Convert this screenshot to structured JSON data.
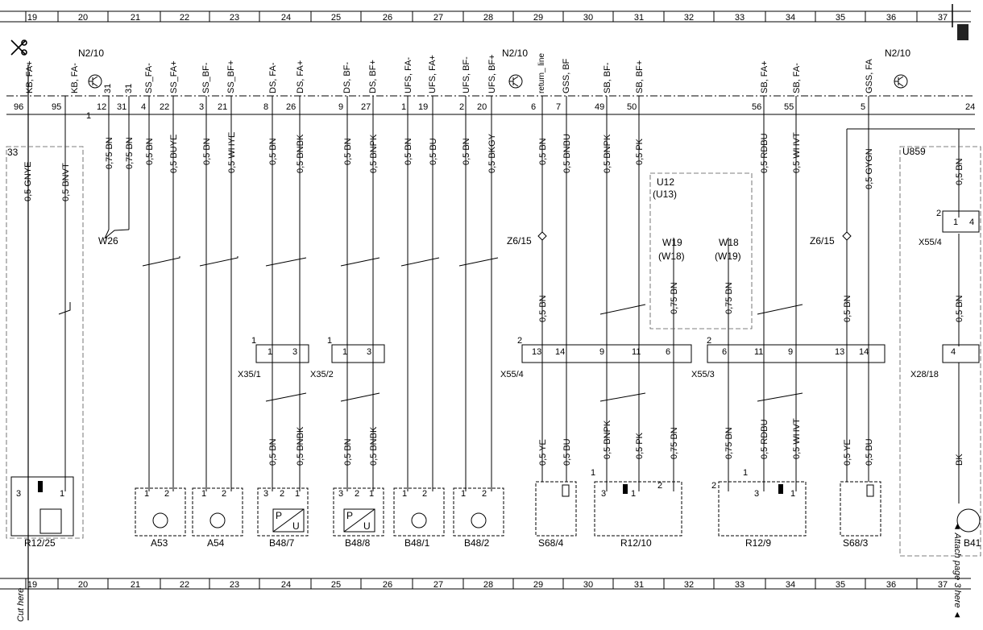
{
  "grid": [
    "19",
    "20",
    "21",
    "22",
    "23",
    "24",
    "25",
    "26",
    "27",
    "28",
    "29",
    "30",
    "31",
    "32",
    "33",
    "34",
    "35",
    "36",
    "37"
  ],
  "module": "N2/10",
  "cut_label": "Cut here",
  "attach_label": "◄ Attach page 3 here ◄",
  "pins": [
    {
      "sig": "KB, FA+",
      "num": "96"
    },
    {
      "sig": "KB, FA-",
      "num": "95"
    },
    {
      "sig": "31",
      "num": "12"
    },
    {
      "sig": "31",
      "num": "31"
    },
    {
      "sig": "SS_FA-",
      "num": "4"
    },
    {
      "sig": "SS_FA+",
      "num": "22"
    },
    {
      "sig": "SS_BF-",
      "num": "3"
    },
    {
      "sig": "SS_BF+",
      "num": "21"
    },
    {
      "sig": "DS, FA-",
      "num": "8"
    },
    {
      "sig": "DS, FA+",
      "num": "26"
    },
    {
      "sig": "DS, BF-",
      "num": "9"
    },
    {
      "sig": "DS, BF+",
      "num": "27"
    },
    {
      "sig": "UFS, FA-",
      "num": "1"
    },
    {
      "sig": "UFS, FA+",
      "num": "19"
    },
    {
      "sig": "UFS, BF-",
      "num": "2"
    },
    {
      "sig": "UFS, BF+",
      "num": "20"
    },
    {
      "sig": "return_ line",
      "num": "6"
    },
    {
      "sig": "GSS, BF",
      "num": "7"
    },
    {
      "sig": "SB, BF-",
      "num": "49"
    },
    {
      "sig": "SB, BF+",
      "num": "50"
    },
    {
      "sig": "SB, FA+",
      "num": "56"
    },
    {
      "sig": "SB, FA-",
      "num": "55"
    },
    {
      "sig": "GSS, FA",
      "num": "5"
    },
    {
      "sig": "",
      "num": "24"
    }
  ],
  "wires_top": [
    "0,5 GNYE",
    "0,5 BNVT",
    "0,75 BN",
    "0,75 BN",
    "0,5 BN",
    "0,5 BUYE",
    "0,5 BN",
    "0,5 WHYE",
    "0,5 BN",
    "0,5 BNBK",
    "0,5 BN",
    "0,5 BNPK",
    "0,5 BN",
    "0,5 BU",
    "0,5 BN",
    "0,5 BKGY",
    "0,5 BN",
    "0,5 BNBU",
    "0,5 BNPK",
    "0,5 PK",
    "0,5 RDBU",
    "0,5 WHVT",
    "0,5 GYGN",
    "0,5 BN"
  ],
  "wires_mid": [
    "0,5 BN",
    "0,75 BN",
    "0,75 BN",
    "0,5 BN",
    "0,5 BN"
  ],
  "wires_low": [
    "0,5 BN",
    "0,5 BNBK",
    "0,5 BN",
    "0,5 BNBK",
    "0,5 YE",
    "0,5 BU",
    "0,5 BNPK",
    "0,5 PK",
    "0,75 BN",
    "0,75 BN",
    "0,5 RDBU",
    "0,5 WHVT",
    "0,5 YE",
    "0,5 BU",
    "BK"
  ],
  "connectors": [
    "X35/1",
    "X35/2",
    "X55/4",
    "X55/3",
    "X28/18",
    "X55/4"
  ],
  "connector_pins": [
    "1",
    "1",
    "3",
    "1",
    "1",
    "3",
    "2",
    "13",
    "14",
    "9",
    "11",
    "6",
    "2",
    "6",
    "11",
    "9",
    "13",
    "14",
    "4",
    "2",
    "1",
    "4"
  ],
  "misc": [
    "W26",
    "Z6/15",
    "Z6/15",
    "U12",
    "(U13)",
    "W19",
    "(W18)",
    "W18",
    "(W19)",
    "U859",
    "33",
    "1"
  ],
  "components": [
    {
      "label": "R12/25",
      "pins": [
        "3",
        "1"
      ]
    },
    {
      "label": "A53",
      "pins": [
        "1",
        "2"
      ]
    },
    {
      "label": "A54",
      "pins": [
        "1",
        "2"
      ]
    },
    {
      "label": "B48/7",
      "pins": [
        "3",
        "2",
        "1"
      ]
    },
    {
      "label": "B48/8",
      "pins": [
        "3",
        "2",
        "1"
      ]
    },
    {
      "label": "B48/1",
      "pins": [
        "1",
        "2"
      ]
    },
    {
      "label": "B48/2",
      "pins": [
        "1",
        "2"
      ]
    },
    {
      "label": "S68/4",
      "pins": []
    },
    {
      "label": "R12/10",
      "pins": [
        "1",
        "3",
        "1",
        "2"
      ]
    },
    {
      "label": "R12/9",
      "pins": [
        "2",
        "1",
        "3",
        "1"
      ]
    },
    {
      "label": "S68/3",
      "pins": []
    },
    {
      "label": "B41",
      "pins": []
    }
  ],
  "sensor_glyph_text": [
    "P",
    "U",
    "P",
    "U"
  ]
}
